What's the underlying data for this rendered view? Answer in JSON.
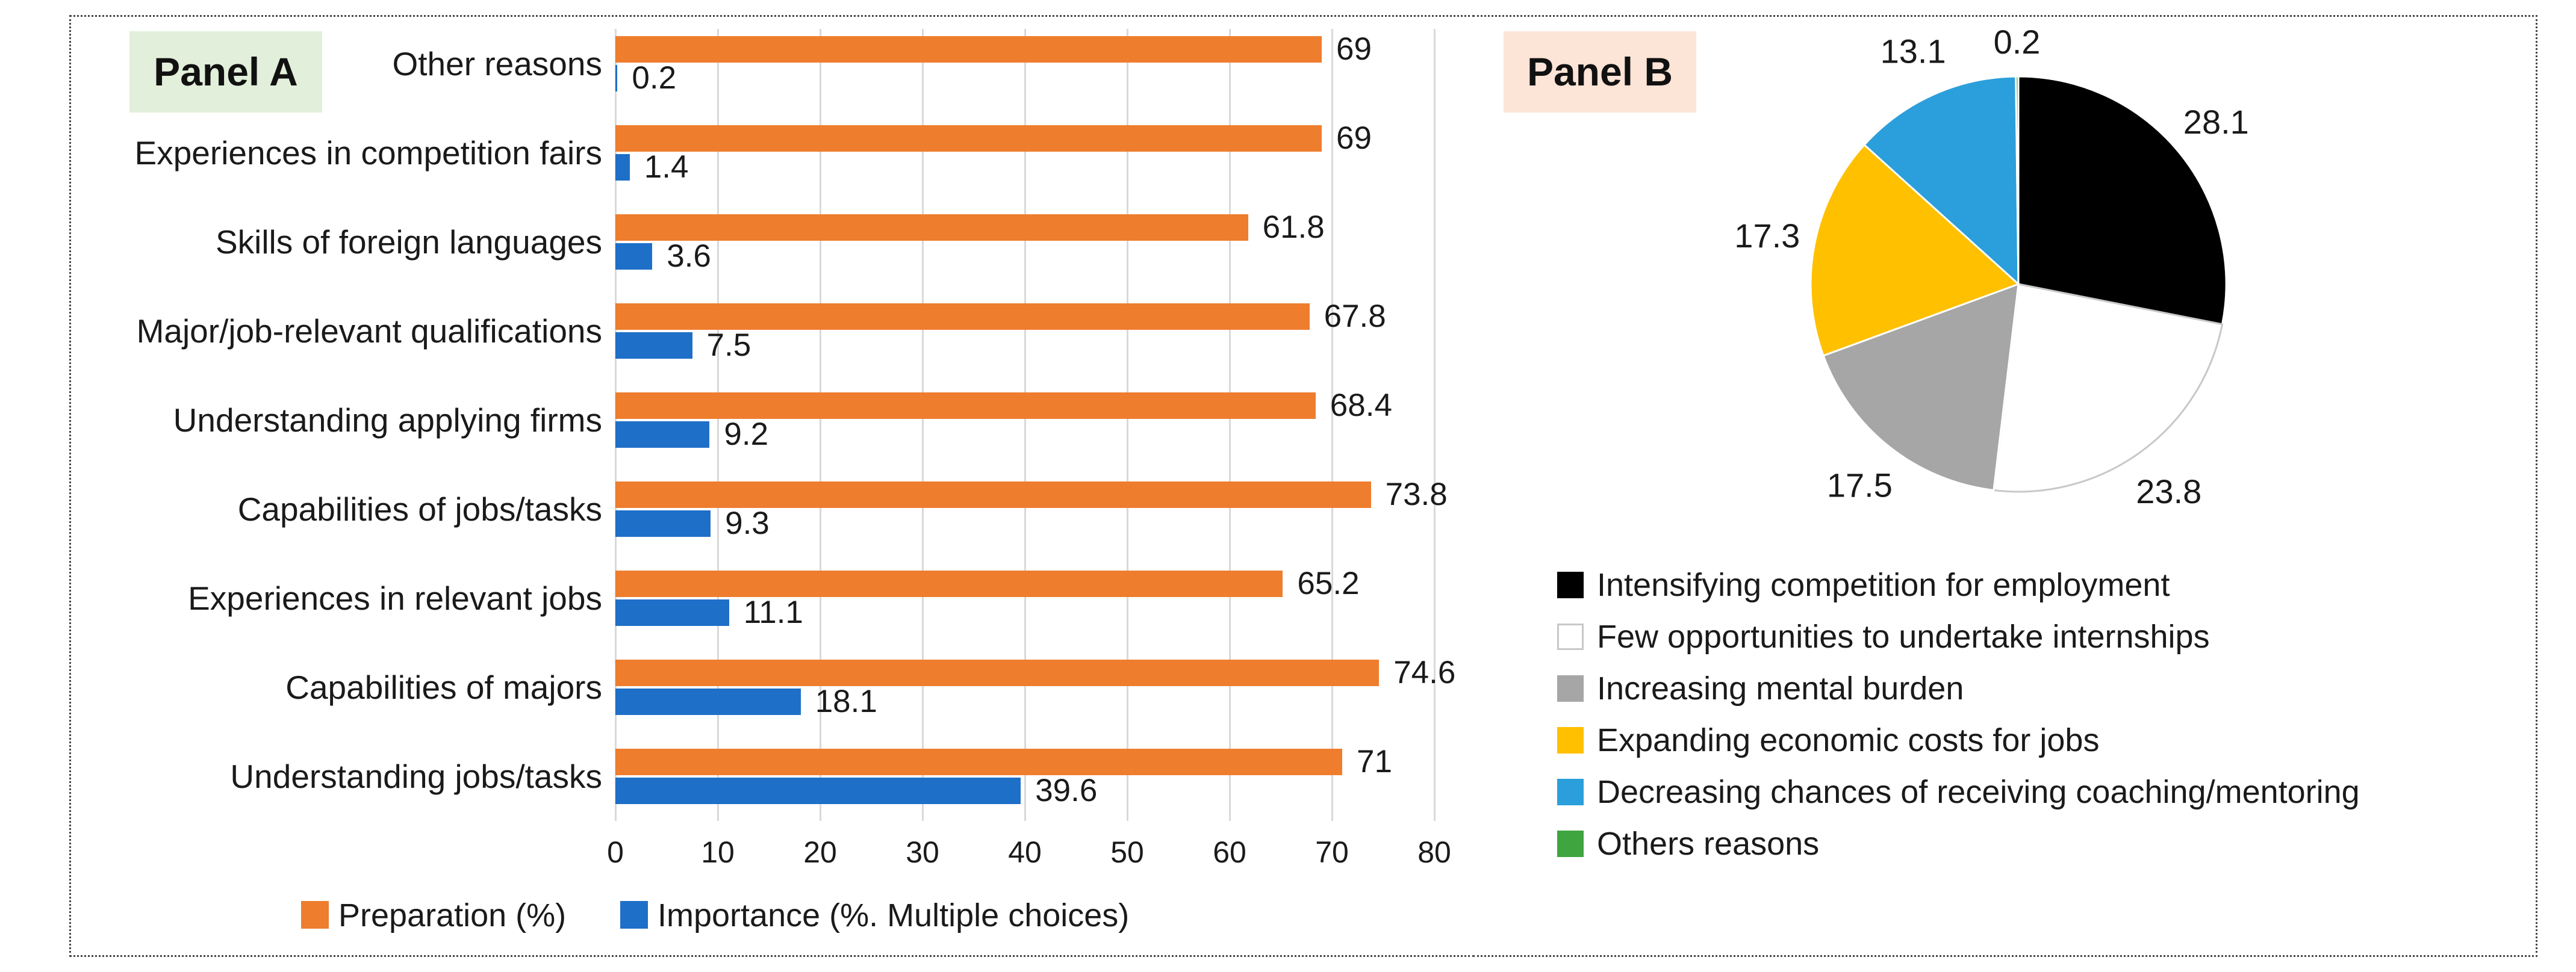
{
  "panel_a": {
    "label": "Panel A",
    "chart_data": {
      "type": "bar",
      "orientation": "horizontal",
      "title": "",
      "xlabel": "",
      "ylabel": "",
      "xlim": [
        0,
        80
      ],
      "ticks": [
        0,
        10,
        20,
        30,
        40,
        50,
        60,
        70,
        80
      ],
      "grid": true,
      "legend_position": "bottom",
      "categories": [
        "Other reasons",
        "Experiences in competition fairs",
        "Skills of foreign languages",
        "Major/job-relevant qualifications",
        "Understanding applying firms",
        "Capabilities of jobs/tasks",
        "Experiences in relevant jobs",
        "Capabilities of majors",
        "Understanding jobs/tasks"
      ],
      "series": [
        {
          "name": "Preparation (%)",
          "color": "#EE7D2E",
          "values": [
            69,
            69,
            61.8,
            67.8,
            68.4,
            73.8,
            65.2,
            74.6,
            71
          ]
        },
        {
          "name": "Importance (%. Multiple choices)",
          "color": "#1E6FC8",
          "values": [
            0.2,
            1.4,
            3.6,
            7.5,
            9.2,
            9.3,
            11.1,
            18.1,
            39.6
          ]
        }
      ]
    }
  },
  "panel_b": {
    "label": "Panel B",
    "chart_data": {
      "type": "pie",
      "start_angle_deg": 0,
      "direction": "clockwise",
      "legend_position": "bottom",
      "slices": [
        {
          "label": "Intensifying competition for employment",
          "value": 28.1,
          "color": "#000000",
          "stroke": "#ffffff"
        },
        {
          "label": "Few opportunities to undertake internships",
          "value": 23.8,
          "color": "#FFFFFF",
          "stroke": "#c8c8c8"
        },
        {
          "label": "Increasing mental burden",
          "value": 17.5,
          "color": "#A6A6A6",
          "stroke": "#ffffff"
        },
        {
          "label": "Expanding economic costs for jobs",
          "value": 17.3,
          "color": "#FFC000",
          "stroke": "#ffffff"
        },
        {
          "label": "Decreasing chances of receiving coaching/mentoring",
          "value": 13.1,
          "color": "#2B9FDB",
          "stroke": "#ffffff"
        },
        {
          "label": "Others reasons",
          "value": 0.2,
          "color": "#3FA53F",
          "stroke": "#ffffff"
        }
      ]
    }
  }
}
